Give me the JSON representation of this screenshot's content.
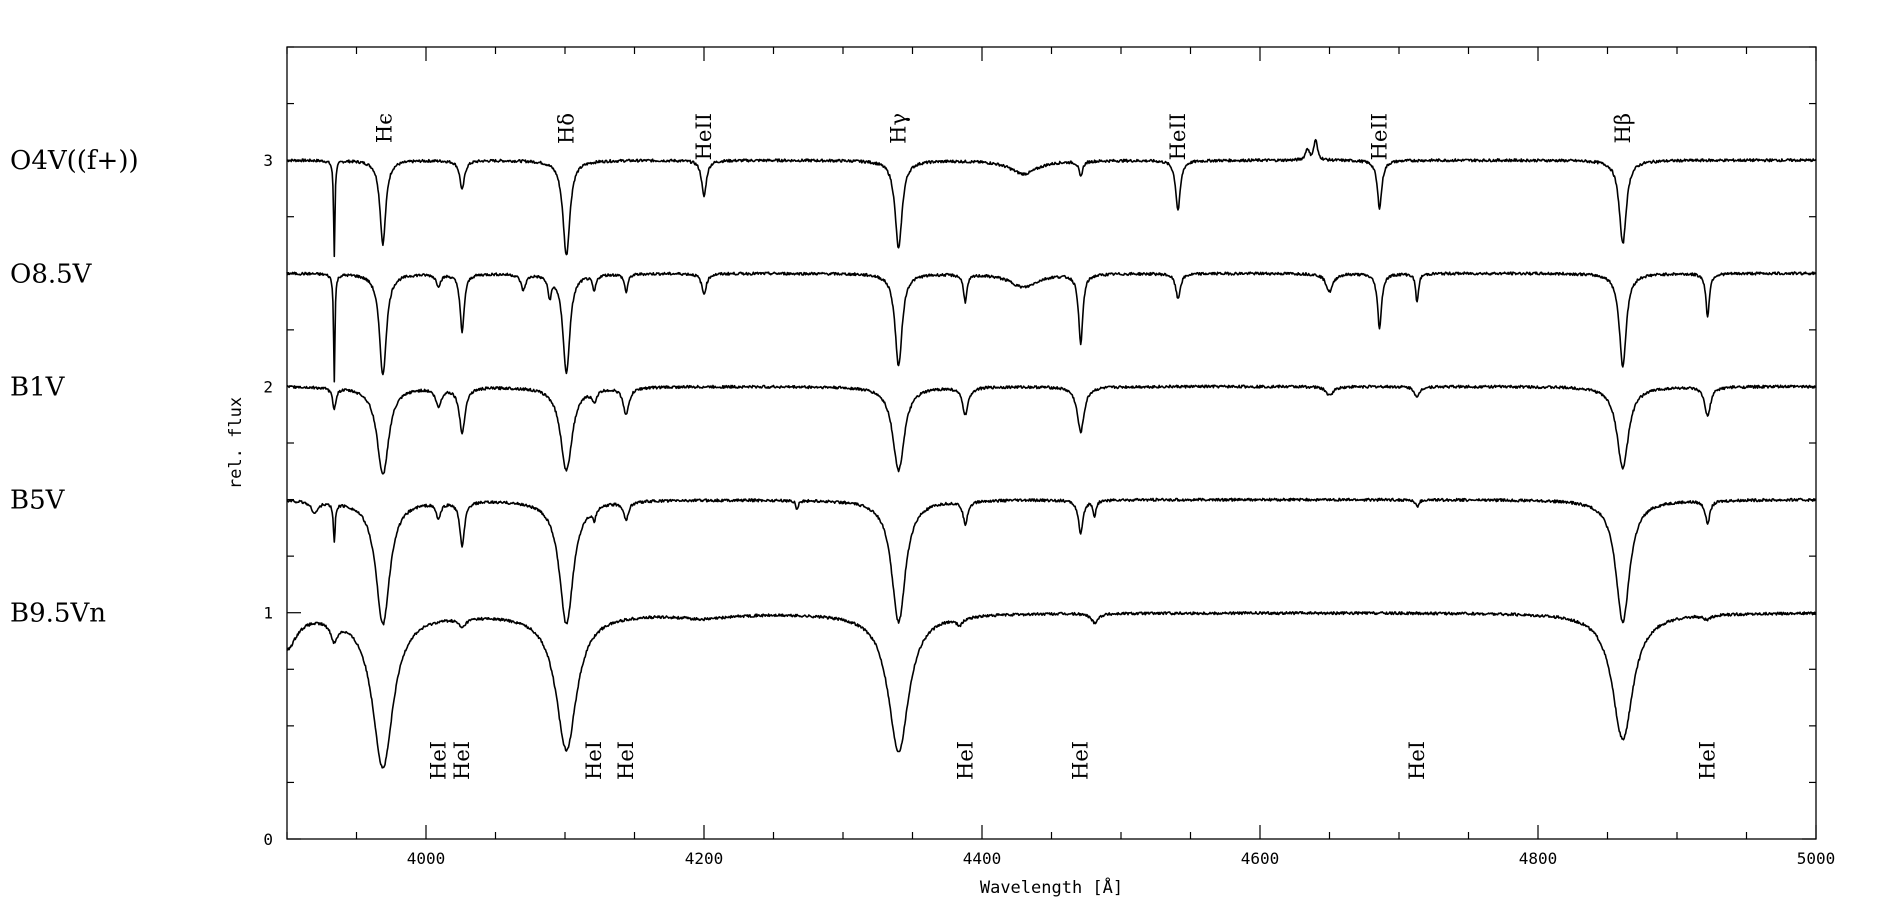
{
  "chart_data": {
    "type": "line",
    "xlabel": "Wavelength [Å]",
    "ylabel": "rel. flux",
    "xlim": [
      3900,
      5000
    ],
    "ylim": [
      0,
      3.5
    ],
    "x_ticks": [
      4000,
      4200,
      4400,
      4600,
      4800,
      5000
    ],
    "x_tick_labels": [
      "4000",
      "4200",
      "4400",
      "4600",
      "4800",
      "5000"
    ],
    "y_ticks": [
      0,
      1,
      2,
      3
    ],
    "y_tick_labels": [
      "0",
      "1",
      "2",
      "3"
    ],
    "series": [
      {
        "name": "O4V((f+))",
        "continuum": 3.0,
        "features": [
          {
            "x": 3934,
            "depth": 0.42,
            "width": 0.6
          },
          {
            "x": 3969,
            "depth": 0.37,
            "width": 2.5
          },
          {
            "x": 4026,
            "depth": 0.13,
            "width": 2.0
          },
          {
            "x": 4101,
            "depth": 0.42,
            "width": 3.0
          },
          {
            "x": 4200,
            "depth": 0.16,
            "width": 2.0
          },
          {
            "x": 4340,
            "depth": 0.39,
            "width": 3.0
          },
          {
            "x": 4430,
            "depth": 0.06,
            "width": 12.0
          },
          {
            "x": 4471,
            "depth": 0.07,
            "width": 1.5
          },
          {
            "x": 4541,
            "depth": 0.22,
            "width": 2.0
          },
          {
            "x": 4634,
            "depth": -0.05,
            "width": 1.5
          },
          {
            "x": 4640,
            "depth": -0.09,
            "width": 1.5
          },
          {
            "x": 4686,
            "depth": 0.21,
            "width": 2.0
          },
          {
            "x": 4861,
            "depth": 0.37,
            "width": 3.0
          }
        ]
      },
      {
        "name": "O8.5V",
        "continuum": 2.5,
        "features": [
          {
            "x": 3934,
            "depth": 0.47,
            "width": 0.6
          },
          {
            "x": 3969,
            "depth": 0.45,
            "width": 3.0
          },
          {
            "x": 4009,
            "depth": 0.05,
            "width": 2.0
          },
          {
            "x": 4026,
            "depth": 0.26,
            "width": 1.8
          },
          {
            "x": 4070,
            "depth": 0.07,
            "width": 2.0
          },
          {
            "x": 4089,
            "depth": 0.09,
            "width": 1.5
          },
          {
            "x": 4101,
            "depth": 0.44,
            "width": 3.0
          },
          {
            "x": 4121,
            "depth": 0.07,
            "width": 1.5
          },
          {
            "x": 4144,
            "depth": 0.08,
            "width": 1.5
          },
          {
            "x": 4200,
            "depth": 0.09,
            "width": 2.0
          },
          {
            "x": 4340,
            "depth": 0.41,
            "width": 3.0
          },
          {
            "x": 4388,
            "depth": 0.12,
            "width": 1.5
          },
          {
            "x": 4430,
            "depth": 0.06,
            "width": 12.0
          },
          {
            "x": 4471,
            "depth": 0.31,
            "width": 1.8
          },
          {
            "x": 4541,
            "depth": 0.11,
            "width": 2.0
          },
          {
            "x": 4650,
            "depth": 0.08,
            "width": 3.0
          },
          {
            "x": 4686,
            "depth": 0.24,
            "width": 1.8
          },
          {
            "x": 4713,
            "depth": 0.13,
            "width": 1.2
          },
          {
            "x": 4861,
            "depth": 0.41,
            "width": 3.0
          },
          {
            "x": 4922,
            "depth": 0.19,
            "width": 1.5
          }
        ]
      },
      {
        "name": "B1V",
        "continuum": 2.0,
        "features": [
          {
            "x": 3934,
            "depth": 0.09,
            "width": 1.5
          },
          {
            "x": 3969,
            "depth": 0.39,
            "width": 5.0
          },
          {
            "x": 4009,
            "depth": 0.08,
            "width": 2.5
          },
          {
            "x": 4026,
            "depth": 0.2,
            "width": 2.5
          },
          {
            "x": 4101,
            "depth": 0.37,
            "width": 5.0
          },
          {
            "x": 4121,
            "depth": 0.05,
            "width": 2.0
          },
          {
            "x": 4144,
            "depth": 0.12,
            "width": 2.5
          },
          {
            "x": 4340,
            "depth": 0.37,
            "width": 5.0
          },
          {
            "x": 4388,
            "depth": 0.12,
            "width": 2.5
          },
          {
            "x": 4471,
            "depth": 0.2,
            "width": 3.0
          },
          {
            "x": 4650,
            "depth": 0.04,
            "width": 3.0
          },
          {
            "x": 4713,
            "depth": 0.05,
            "width": 2.0
          },
          {
            "x": 4861,
            "depth": 0.36,
            "width": 5.0
          },
          {
            "x": 4922,
            "depth": 0.13,
            "width": 2.5
          }
        ]
      },
      {
        "name": "B5V",
        "continuum": 1.5,
        "features": [
          {
            "x": 3920,
            "depth": 0.05,
            "width": 3.0
          },
          {
            "x": 3934,
            "depth": 0.17,
            "width": 0.8
          },
          {
            "x": 3969,
            "depth": 0.55,
            "width": 6.0
          },
          {
            "x": 4009,
            "depth": 0.07,
            "width": 2.0
          },
          {
            "x": 4026,
            "depth": 0.2,
            "width": 2.0
          },
          {
            "x": 4101,
            "depth": 0.55,
            "width": 6.0
          },
          {
            "x": 4121,
            "depth": 0.05,
            "width": 1.5
          },
          {
            "x": 4144,
            "depth": 0.08,
            "width": 2.0
          },
          {
            "x": 4267,
            "depth": 0.04,
            "width": 1.0
          },
          {
            "x": 4340,
            "depth": 0.54,
            "width": 6.0
          },
          {
            "x": 4388,
            "depth": 0.1,
            "width": 2.0
          },
          {
            "x": 4471,
            "depth": 0.15,
            "width": 2.0
          },
          {
            "x": 4481,
            "depth": 0.07,
            "width": 1.2
          },
          {
            "x": 4713,
            "depth": 0.03,
            "width": 1.5
          },
          {
            "x": 4861,
            "depth": 0.54,
            "width": 6.0
          },
          {
            "x": 4922,
            "depth": 0.1,
            "width": 2.0
          }
        ]
      },
      {
        "name": "B9.5Vn",
        "continuum": 1.0,
        "features": [
          {
            "x": 3900,
            "depth": 0.15,
            "width": 8.0
          },
          {
            "x": 3934,
            "depth": 0.08,
            "width": 3.0
          },
          {
            "x": 3969,
            "depth": 0.68,
            "width": 9.0
          },
          {
            "x": 4026,
            "depth": 0.04,
            "width": 3.0
          },
          {
            "x": 4101,
            "depth": 0.6,
            "width": 9.0
          },
          {
            "x": 4200,
            "depth": 0.02,
            "width": 20.0
          },
          {
            "x": 4340,
            "depth": 0.61,
            "width": 9.0
          },
          {
            "x": 4384,
            "depth": 0.03,
            "width": 3.0
          },
          {
            "x": 4481,
            "depth": 0.04,
            "width": 3.0
          },
          {
            "x": 4861,
            "depth": 0.56,
            "width": 9.0
          },
          {
            "x": 4922,
            "depth": 0.02,
            "width": 3.0
          }
        ]
      }
    ],
    "top_annotations": [
      {
        "label": "Hϵ",
        "x": 3970
      },
      {
        "label": "Hδ",
        "x": 4101
      },
      {
        "label": "HeII",
        "x": 4200
      },
      {
        "label": "Hγ",
        "x": 4340
      },
      {
        "label": "HeII",
        "x": 4541
      },
      {
        "label": "HeII",
        "x": 4686
      },
      {
        "label": "Hβ",
        "x": 4861
      }
    ],
    "bottom_annotations": [
      {
        "label": "HeI",
        "x": 4009
      },
      {
        "label": "HeI",
        "x": 4026
      },
      {
        "label": "HeI",
        "x": 4121
      },
      {
        "label": "HeI",
        "x": 4144
      },
      {
        "label": "HeI",
        "x": 4388
      },
      {
        "label": "HeI",
        "x": 4471
      },
      {
        "label": "HeI",
        "x": 4713
      },
      {
        "label": "HeI",
        "x": 4922
      }
    ]
  }
}
